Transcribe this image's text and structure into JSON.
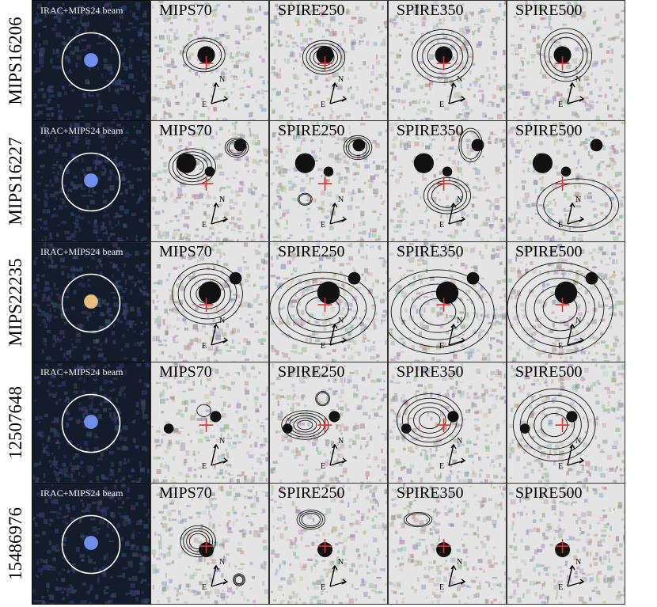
{
  "rgb_label": "IRAC+MIPS24 beam",
  "columns": [
    "MIPS70",
    "SPIRE250",
    "SPIRE350",
    "SPIRE500"
  ],
  "compass": {
    "north": "N",
    "east": "E"
  },
  "rows": [
    {
      "id": "MIPS16206"
    },
    {
      "id": "MIPS16227"
    },
    {
      "id": "MIPS22235"
    },
    {
      "id": "12507648"
    },
    {
      "id": "15486976"
    }
  ],
  "colors": {
    "marker": "#e03030",
    "contour": "#111111",
    "beam_circle": "#ffffff",
    "rgb_bg": "#141c2c"
  }
}
